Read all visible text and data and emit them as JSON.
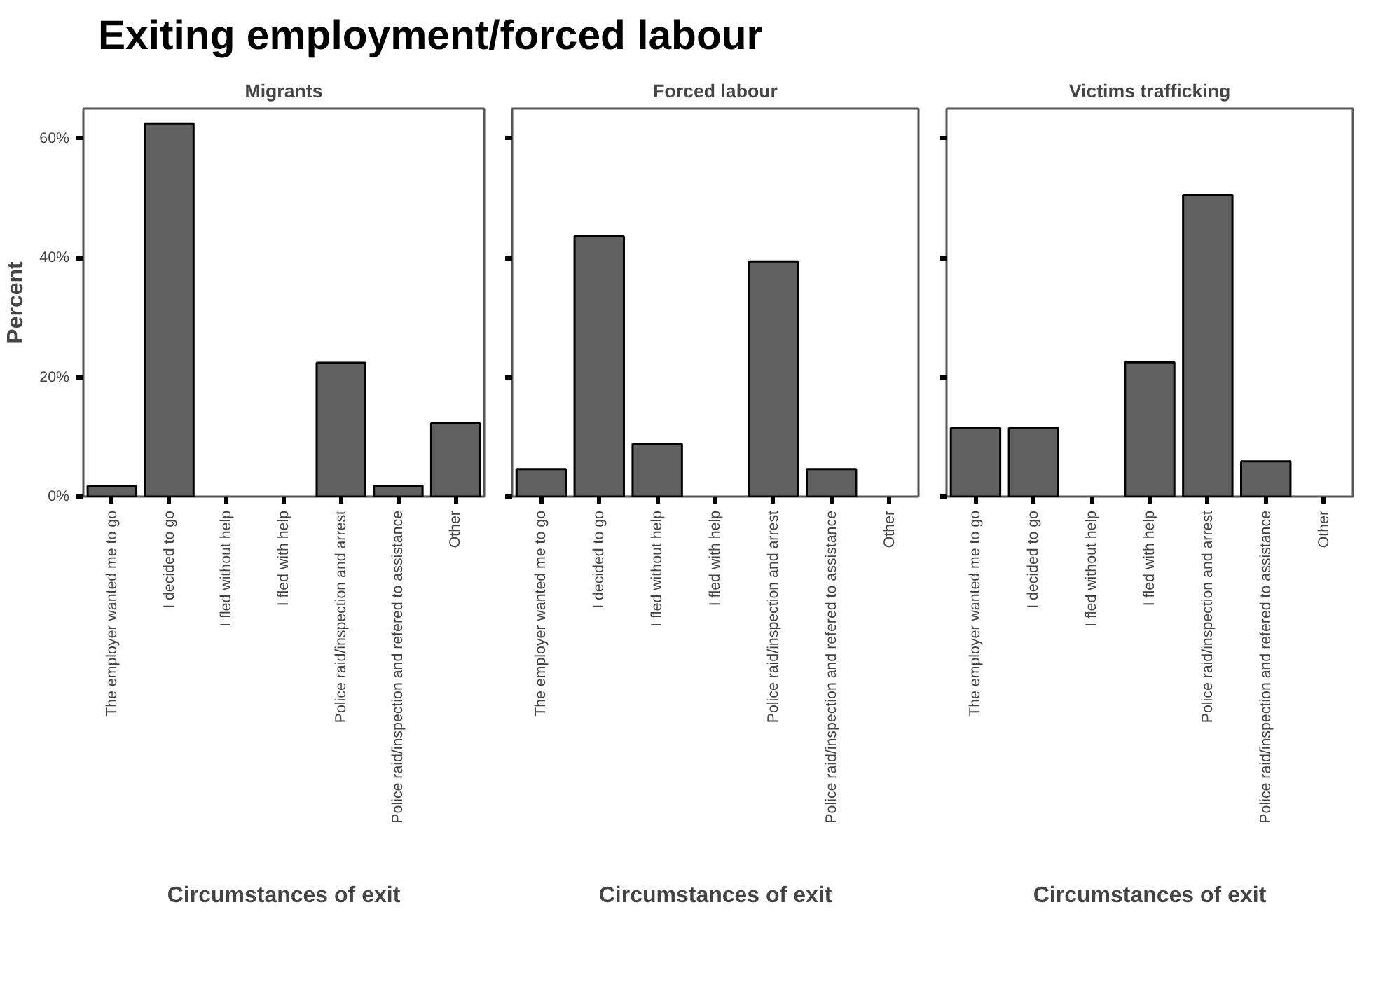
{
  "chart_data": [
    {
      "type": "bar",
      "title": "Exiting employment/forced labour",
      "subtitle": "Migrants",
      "xlabel": "Circumstances of exit",
      "ylabel": "Percent",
      "categories": [
        "The employer wanted me to go",
        "I decided to go",
        "I fled without help",
        "I fled with help",
        "Police raid/inspection and arrest",
        "Police raid/inspection and refered to assistance",
        "Other"
      ],
      "values": [
        1.8,
        62.5,
        null,
        null,
        22.4,
        1.8,
        12.3
      ],
      "color": "#606060",
      "ylim": [
        0,
        65
      ],
      "yticks": [
        {
          "value": 0,
          "label": "0%"
        },
        {
          "value": 20,
          "label": "20%"
        },
        {
          "value": 40,
          "label": "40%"
        },
        {
          "value": 60,
          "label": "60%"
        }
      ],
      "grid": false
    },
    {
      "type": "bar",
      "subtitle": "Forced labour",
      "xlabel": "Circumstances of exit",
      "categories": [
        "The employer wanted me to go",
        "I decided to go",
        "I fled without help",
        "I fled with help",
        "Police raid/inspection and arrest",
        "Police raid/inspection and refered to assistance",
        "Other"
      ],
      "values": [
        4.6,
        43.6,
        8.8,
        null,
        39.4,
        4.6,
        null
      ],
      "color": "#606060",
      "ylim": [
        0,
        65
      ],
      "yticks": [
        {
          "value": 0,
          "label": null
        },
        {
          "value": 20,
          "label": null
        },
        {
          "value": 40,
          "label": null
        },
        {
          "value": 60,
          "label": null
        }
      ],
      "tick_labels": "x",
      "grid": false
    },
    {
      "type": "bar",
      "subtitle": "Victims trafficking",
      "xlabel": "Circumstances of exit",
      "categories": [
        "The employer wanted me to go",
        "I decided to go",
        "I fled without help",
        "I fled with help",
        "Police raid/inspection and arrest",
        "Police raid/inspection and refered to assistance",
        "Other"
      ],
      "values": [
        11.5,
        11.5,
        null,
        22.5,
        50.5,
        5.9,
        null
      ],
      "color": "#606060",
      "ylim": [
        0,
        65
      ],
      "yticks": [
        {
          "value": 0,
          "label": null
        },
        {
          "value": 20,
          "label": null
        },
        {
          "value": 40,
          "label": null
        },
        {
          "value": 60,
          "label": null
        }
      ],
      "tick_labels": "x",
      "grid": false
    }
  ]
}
